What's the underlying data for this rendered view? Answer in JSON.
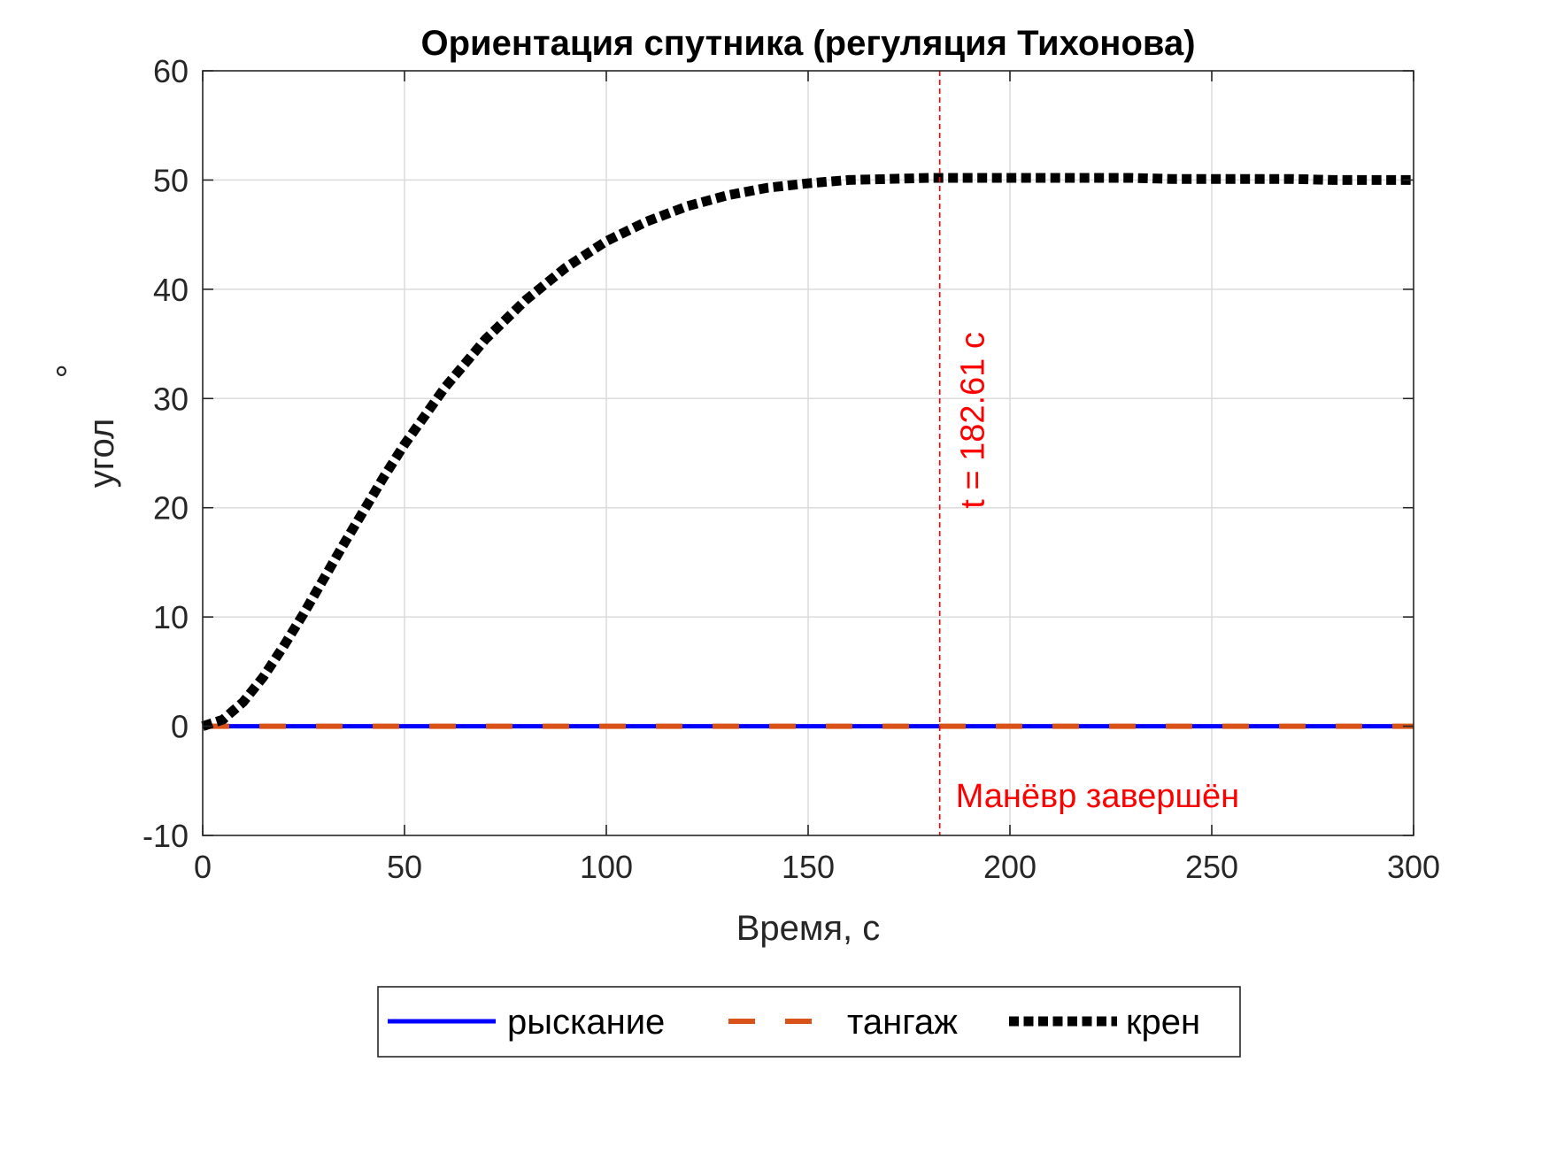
{
  "chart_data": {
    "type": "line",
    "title": "Ориентация спутника (регуляция Тихонова)",
    "xlabel": "Время, с",
    "ylabel": "угол",
    "ylabel_unit": "°",
    "xlim": [
      0,
      300
    ],
    "ylim": [
      -10,
      60
    ],
    "xticks": [
      0,
      50,
      100,
      150,
      200,
      250,
      300
    ],
    "yticks": [
      -10,
      0,
      10,
      20,
      30,
      40,
      50,
      60
    ],
    "xtick_labels": [
      "0",
      "50",
      "100",
      "150",
      "200",
      "250",
      "300"
    ],
    "ytick_labels": [
      "-10",
      "0",
      "10",
      "20",
      "30",
      "40",
      "50",
      "60"
    ],
    "grid": true,
    "legend_position": "bottom-outside",
    "series": [
      {
        "name": "рыскание",
        "color": "#0000ff",
        "style": "solid",
        "x": [
          0,
          300
        ],
        "y": [
          0,
          0
        ]
      },
      {
        "name": "тангаж",
        "color": "#d95319",
        "style": "dashed",
        "x": [
          0,
          300
        ],
        "y": [
          0,
          0
        ]
      },
      {
        "name": "крен",
        "color": "#000000",
        "style": "dotted",
        "x": [
          0,
          5,
          10,
          15,
          20,
          25,
          30,
          35,
          40,
          45,
          50,
          60,
          70,
          80,
          90,
          100,
          110,
          120,
          130,
          140,
          150,
          160,
          170,
          180,
          190,
          200,
          210,
          220,
          230,
          240,
          250,
          260,
          270,
          280,
          290,
          300
        ],
        "y": [
          0,
          0.6,
          2.2,
          4.5,
          7.3,
          10.3,
          13.5,
          16.7,
          19.8,
          22.9,
          25.8,
          31.0,
          35.4,
          39.0,
          42.0,
          44.4,
          46.2,
          47.6,
          48.6,
          49.3,
          49.7,
          50.0,
          50.1,
          50.2,
          50.2,
          50.2,
          50.2,
          50.2,
          50.2,
          50.1,
          50.1,
          50.1,
          50.1,
          50.0,
          50.0,
          50.0
        ]
      }
    ],
    "annotations": {
      "vline_x": 182.61,
      "vline_color": "#ff0000",
      "vline_label": "t = 182.61 с",
      "end_label": "Манёвр завершён"
    }
  }
}
